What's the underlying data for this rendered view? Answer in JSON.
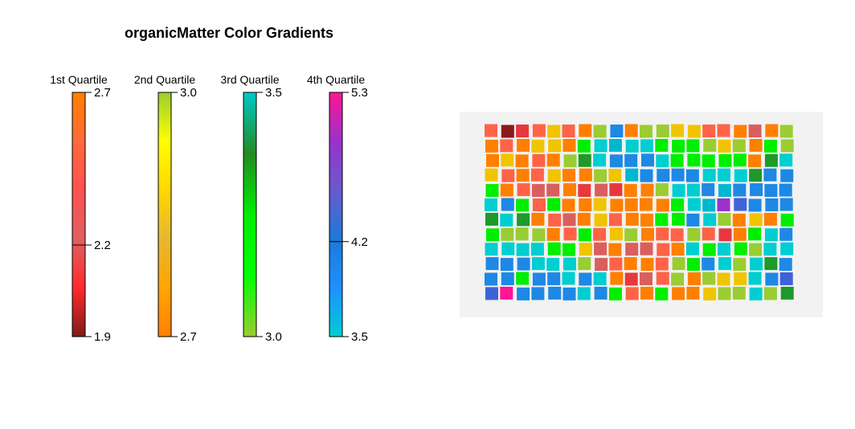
{
  "chart_data": {
    "type": "heatmap",
    "title": "organicMatter Color Gradients",
    "legends": [
      {
        "name": "1st Quartile",
        "min": 1.9,
        "mid": 2.2,
        "max": 2.7,
        "min_label": "1.9",
        "mid_label": "2.2",
        "max_label": "2.7",
        "colors": [
          "#7f1a1a",
          "#ff2a2a",
          "#e06060",
          "#ff5050",
          "#ff6a3a",
          "#ff8000"
        ]
      },
      {
        "name": "2nd Quartile",
        "min": 2.7,
        "max": 3.0,
        "min_label": "2.7",
        "max_label": "3.0",
        "colors": [
          "#ff8000",
          "#ffa500",
          "#e6b830",
          "#ffd700",
          "#ffff00",
          "#9acd32"
        ]
      },
      {
        "name": "3rd Quartile",
        "min": 3.0,
        "max": 3.5,
        "min_label": "3.0",
        "max_label": "3.5",
        "colors": [
          "#9acd32",
          "#00ff00",
          "#00ee00",
          "#228b22",
          "#00c8c8"
        ]
      },
      {
        "name": "4th Quartile",
        "min": 3.5,
        "mid": 4.2,
        "max": 5.3,
        "min_label": "3.5",
        "mid_label": "4.2",
        "max_label": "5.3",
        "colors": [
          "#00ced1",
          "#1e90ff",
          "#1c7ad8",
          "#6a5acd",
          "#9932cc",
          "#ff1493"
        ]
      }
    ],
    "grid": {
      "rows": 12,
      "cols": 20,
      "palette": {
        "DR": "#8b1a1a",
        "R": "#e8383d",
        "RS": "#ff6347",
        "SL": "#d95f5f",
        "O": "#ff7f00",
        "Y": "#f0c400",
        "YG": "#9acd32",
        "G": "#00ee00",
        "DG": "#1e9a2a",
        "C": "#00ced1",
        "TC": "#00b7d0",
        "B": "#1e88e5",
        "SB": "#3f62d6",
        "P": "#9932cc",
        "M": "#ff1493"
      },
      "cells": [
        [
          "RS",
          "DR",
          "R",
          "RS",
          "Y",
          "RS",
          "O",
          "YG",
          "B",
          "O",
          "YG",
          "YG",
          "Y",
          "Y",
          "RS",
          "RS",
          "O",
          "SL",
          "O",
          "YG"
        ],
        [
          "O",
          "RS",
          "O",
          "Y",
          "Y",
          "O",
          "G",
          "C",
          "TC",
          "C",
          "C",
          "G",
          "G",
          "G",
          "YG",
          "Y",
          "YG",
          "O",
          "G",
          "YG"
        ],
        [
          "O",
          "Y",
          "O",
          "RS",
          "O",
          "YG",
          "DG",
          "C",
          "B",
          "B",
          "B",
          "C",
          "G",
          "G",
          "G",
          "G",
          "G",
          "O",
          "DG",
          "C"
        ],
        [
          "Y",
          "RS",
          "O",
          "RS",
          "Y",
          "O",
          "O",
          "YG",
          "Y",
          "TC",
          "B",
          "B",
          "B",
          "B",
          "C",
          "C",
          "C",
          "DG",
          "B",
          "B"
        ],
        [
          "G",
          "O",
          "RS",
          "SL",
          "SL",
          "O",
          "R",
          "SL",
          "R",
          "O",
          "O",
          "YG",
          "C",
          "C",
          "B",
          "TC",
          "B",
          "B",
          "B",
          "B"
        ],
        [
          "C",
          "B",
          "G",
          "RS",
          "G",
          "O",
          "O",
          "Y",
          "O",
          "O",
          "O",
          "O",
          "G",
          "C",
          "TC",
          "P",
          "SB",
          "B",
          "B",
          "B"
        ],
        [
          "DG",
          "C",
          "DG",
          "O",
          "RS",
          "SL",
          "O",
          "Y",
          "RS",
          "O",
          "O",
          "G",
          "G",
          "B",
          "C",
          "YG",
          "O",
          "Y",
          "O",
          "G"
        ],
        [
          "G",
          "YG",
          "YG",
          "YG",
          "O",
          "RS",
          "G",
          "RS",
          "Y",
          "YG",
          "O",
          "RS",
          "RS",
          "YG",
          "RS",
          "R",
          "O",
          "G",
          "C",
          "B"
        ],
        [
          "C",
          "C",
          "C",
          "C",
          "G",
          "G",
          "Y",
          "SL",
          "O",
          "SL",
          "SL",
          "RS",
          "O",
          "C",
          "G",
          "C",
          "G",
          "YG",
          "C",
          "C"
        ],
        [
          "B",
          "B",
          "B",
          "C",
          "C",
          "C",
          "YG",
          "SL",
          "RS",
          "O",
          "O",
          "RS",
          "YG",
          "G",
          "B",
          "C",
          "YG",
          "C",
          "DG",
          "B"
        ],
        [
          "B",
          "B",
          "G",
          "B",
          "B",
          "C",
          "B",
          "C",
          "O",
          "R",
          "SL",
          "RS",
          "YG",
          "O",
          "YG",
          "Y",
          "Y",
          "C",
          "B",
          "SB"
        ],
        [
          "SB",
          "M",
          "B",
          "B",
          "B",
          "B",
          "C",
          "B",
          "G",
          "RS",
          "O",
          "G",
          "O",
          "O",
          "Y",
          "YG",
          "YG",
          "C",
          "YG",
          "DG"
        ]
      ]
    }
  }
}
